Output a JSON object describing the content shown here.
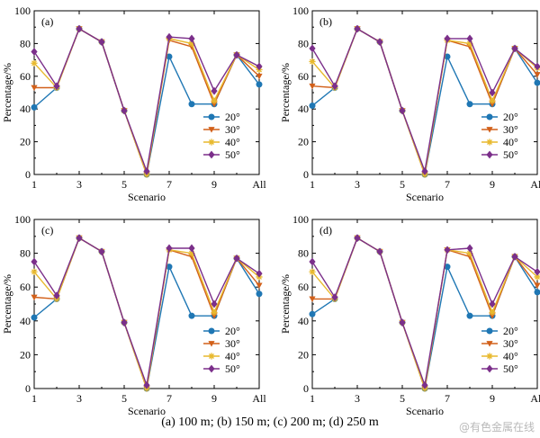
{
  "caption": "(a) 100 m; (b) 150 m; (c) 200 m; (d) 250 m",
  "watermark": "@有色金属在线",
  "styles": {
    "20°": {
      "color": "#1f77b4",
      "marker": "circle"
    },
    "30°": {
      "color": "#d2601a",
      "marker": "triangle-down"
    },
    "40°": {
      "color": "#e8b92e",
      "marker": "star"
    },
    "50°": {
      "color": "#7b2f8a",
      "marker": "diamond"
    }
  },
  "chart_data": [
    {
      "type": "line",
      "panel": "(a)",
      "x": [
        1,
        2,
        3,
        4,
        5,
        6,
        7,
        8,
        9,
        10,
        11
      ],
      "xticks": [
        "1",
        "3",
        "5",
        "7",
        "9",
        "All"
      ],
      "xticks_at": [
        1,
        3,
        5,
        7,
        9,
        11
      ],
      "ylim": [
        0,
        100
      ],
      "yticks": [
        0,
        20,
        40,
        60,
        80,
        100
      ],
      "xlabel": "Scenario",
      "ylabel": "Percentage/%",
      "legend": "bottom-right",
      "series": [
        {
          "name": "20°",
          "values": [
            41,
            53,
            89,
            81,
            39,
            0,
            72,
            43,
            43,
            73,
            55
          ]
        },
        {
          "name": "30°",
          "values": [
            53,
            53,
            89,
            81,
            39,
            0,
            82,
            78,
            43,
            73,
            60
          ]
        },
        {
          "name": "40°",
          "values": [
            68,
            53,
            89,
            81,
            39,
            0,
            83,
            80,
            45,
            73,
            64
          ]
        },
        {
          "name": "50°",
          "values": [
            75,
            54,
            89,
            81,
            39,
            2,
            84,
            83,
            51,
            73,
            66
          ]
        }
      ]
    },
    {
      "type": "line",
      "panel": "(b)",
      "x": [
        1,
        2,
        3,
        4,
        5,
        6,
        7,
        8,
        9,
        10,
        11
      ],
      "xticks": [
        "1",
        "3",
        "5",
        "7",
        "9",
        "All"
      ],
      "xticks_at": [
        1,
        3,
        5,
        7,
        9,
        11
      ],
      "ylim": [
        0,
        100
      ],
      "yticks": [
        0,
        20,
        40,
        60,
        80,
        100
      ],
      "xlabel": "Scenario",
      "ylabel": "Percentage/%",
      "legend": "bottom-right",
      "series": [
        {
          "name": "20°",
          "values": [
            42,
            53,
            89,
            81,
            39,
            0,
            72,
            43,
            43,
            77,
            56
          ]
        },
        {
          "name": "30°",
          "values": [
            54,
            53,
            89,
            81,
            39,
            0,
            82,
            78,
            43,
            77,
            61
          ]
        },
        {
          "name": "40°",
          "values": [
            69,
            53,
            89,
            81,
            39,
            0,
            82,
            80,
            45,
            77,
            65
          ]
        },
        {
          "name": "50°",
          "values": [
            77,
            54,
            89,
            81,
            39,
            2,
            83,
            83,
            50,
            77,
            66
          ]
        }
      ]
    },
    {
      "type": "line",
      "panel": "(c)",
      "x": [
        1,
        2,
        3,
        4,
        5,
        6,
        7,
        8,
        9,
        10,
        11
      ],
      "xticks": [
        "1",
        "3",
        "5",
        "7",
        "9",
        "All"
      ],
      "xticks_at": [
        1,
        3,
        5,
        7,
        9,
        11
      ],
      "ylim": [
        0,
        100
      ],
      "yticks": [
        0,
        20,
        40,
        60,
        80,
        100
      ],
      "xlabel": "Scenario",
      "ylabel": "Percentage/%",
      "legend": "bottom-right",
      "series": [
        {
          "name": "20°",
          "values": [
            42,
            53,
            89,
            81,
            39,
            0,
            72,
            43,
            43,
            77,
            56
          ]
        },
        {
          "name": "30°",
          "values": [
            54,
            53,
            89,
            81,
            39,
            0,
            82,
            78,
            43,
            77,
            61
          ]
        },
        {
          "name": "40°",
          "values": [
            69,
            53,
            89,
            81,
            39,
            0,
            82,
            80,
            45,
            77,
            66
          ]
        },
        {
          "name": "50°",
          "values": [
            75,
            55,
            89,
            81,
            39,
            2,
            83,
            83,
            50,
            77,
            68
          ]
        }
      ]
    },
    {
      "type": "line",
      "panel": "(d)",
      "x": [
        1,
        2,
        3,
        4,
        5,
        6,
        7,
        8,
        9,
        10,
        11
      ],
      "xticks": [
        "1",
        "3",
        "5",
        "7",
        "9",
        "All"
      ],
      "xticks_at": [
        1,
        3,
        5,
        7,
        9,
        11
      ],
      "ylim": [
        0,
        100
      ],
      "yticks": [
        0,
        20,
        40,
        60,
        80,
        100
      ],
      "xlabel": "Scenario",
      "ylabel": "Percentage/%",
      "legend": "bottom-right",
      "series": [
        {
          "name": "20°",
          "values": [
            44,
            53,
            89,
            81,
            39,
            0,
            72,
            43,
            43,
            78,
            57
          ]
        },
        {
          "name": "30°",
          "values": [
            53,
            53,
            89,
            81,
            39,
            0,
            82,
            78,
            43,
            78,
            61
          ]
        },
        {
          "name": "40°",
          "values": [
            69,
            53,
            89,
            81,
            39,
            0,
            82,
            80,
            45,
            78,
            66
          ]
        },
        {
          "name": "50°",
          "values": [
            75,
            54,
            89,
            81,
            39,
            2,
            82,
            83,
            50,
            78,
            69
          ]
        }
      ]
    }
  ]
}
